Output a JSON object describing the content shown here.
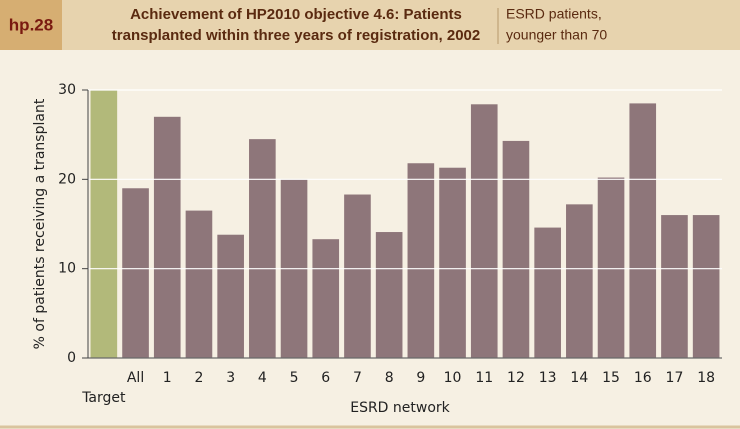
{
  "header": {
    "label": "hp.28"
  },
  "chart_data": {
    "type": "bar",
    "title": [
      "Achievement of HP2010 objective 4.6: Patients",
      "transplanted within three years of registration, 2002"
    ],
    "subtitle": [
      "ESRD patients,",
      "younger than 70"
    ],
    "x_label": "ESRD network",
    "y_label": "% of patients receiving a transplant",
    "categories": [
      "Target",
      "All",
      "1",
      "2",
      "3",
      "4",
      "5",
      "6",
      "7",
      "8",
      "9",
      "10",
      "11",
      "12",
      "13",
      "14",
      "15",
      "16",
      "17",
      "18"
    ],
    "values": [
      30,
      19,
      27,
      16.5,
      13.8,
      24.5,
      20,
      13.3,
      18.3,
      14.1,
      21.8,
      21.3,
      28.4,
      24.3,
      14.6,
      17.2,
      20.2,
      28.5,
      16,
      16
    ],
    "colors": [
      "#b2b97a",
      "#8e767a",
      "#8e767a",
      "#8e767a",
      "#8e767a",
      "#8e767a",
      "#8e767a",
      "#8e767a",
      "#8e767a",
      "#8e767a",
      "#8e767a",
      "#8e767a",
      "#8e767a",
      "#8e767a",
      "#8e767a",
      "#8e767a",
      "#8e767a",
      "#8e767a",
      "#8e767a",
      "#8e767a"
    ],
    "ylim": [
      0,
      30
    ],
    "yticks": [
      0,
      10,
      20,
      30
    ],
    "grid": true
  }
}
